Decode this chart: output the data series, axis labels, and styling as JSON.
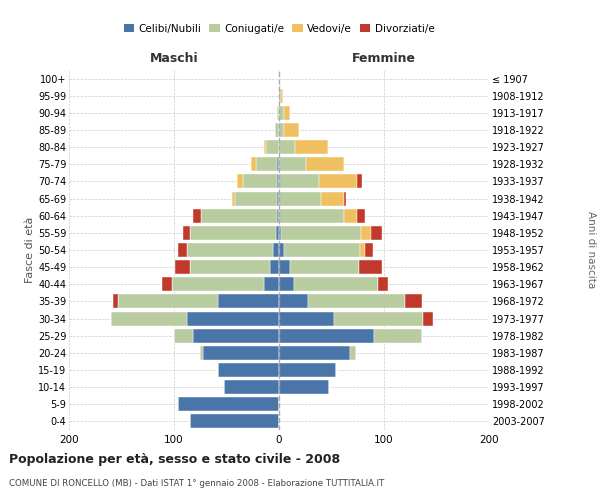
{
  "age_groups": [
    "0-4",
    "5-9",
    "10-14",
    "15-19",
    "20-24",
    "25-29",
    "30-34",
    "35-39",
    "40-44",
    "45-49",
    "50-54",
    "55-59",
    "60-64",
    "65-69",
    "70-74",
    "75-79",
    "80-84",
    "85-89",
    "90-94",
    "95-99",
    "100+"
  ],
  "birth_years": [
    "2003-2007",
    "1998-2002",
    "1993-1997",
    "1988-1992",
    "1983-1987",
    "1978-1982",
    "1973-1977",
    "1968-1972",
    "1963-1967",
    "1958-1962",
    "1953-1957",
    "1948-1952",
    "1943-1947",
    "1938-1942",
    "1933-1937",
    "1928-1932",
    "1923-1927",
    "1918-1922",
    "1913-1917",
    "1908-1912",
    "≤ 1907"
  ],
  "maschi_celibi": [
    85,
    96,
    52,
    58,
    72,
    82,
    88,
    58,
    14,
    9,
    6,
    3,
    2,
    2,
    2,
    2,
    0,
    0,
    0,
    0,
    0
  ],
  "maschi_coniugati": [
    0,
    0,
    0,
    0,
    3,
    18,
    72,
    95,
    88,
    76,
    82,
    82,
    72,
    40,
    32,
    20,
    12,
    4,
    2,
    0,
    0
  ],
  "maschi_vedovi": [
    0,
    0,
    0,
    0,
    0,
    0,
    0,
    0,
    0,
    0,
    0,
    0,
    0,
    3,
    6,
    5,
    2,
    0,
    0,
    0,
    0
  ],
  "maschi_divorziati": [
    0,
    0,
    0,
    0,
    0,
    0,
    0,
    5,
    9,
    14,
    8,
    6,
    8,
    0,
    0,
    0,
    0,
    0,
    0,
    0,
    0
  ],
  "femmine_nubili": [
    0,
    0,
    48,
    54,
    68,
    90,
    52,
    28,
    14,
    10,
    5,
    2,
    0,
    0,
    0,
    0,
    0,
    0,
    0,
    0,
    0
  ],
  "femmine_coniugate": [
    0,
    0,
    0,
    0,
    5,
    46,
    85,
    92,
    80,
    66,
    72,
    76,
    62,
    40,
    38,
    26,
    15,
    5,
    5,
    2,
    0
  ],
  "femmine_vedove": [
    0,
    0,
    0,
    0,
    0,
    0,
    0,
    0,
    0,
    0,
    5,
    10,
    12,
    22,
    36,
    36,
    32,
    14,
    5,
    2,
    0
  ],
  "femmine_divorziate": [
    0,
    0,
    0,
    0,
    0,
    0,
    10,
    16,
    10,
    22,
    8,
    10,
    8,
    2,
    5,
    0,
    0,
    0,
    0,
    0,
    0
  ],
  "colors": {
    "celibi_nubili": "#4a75a8",
    "coniugati": "#b8cca0",
    "vedovi": "#f0c060",
    "divorziati": "#c0392b"
  },
  "xlim": 200,
  "title": "Popolazione per età, sesso e stato civile - 2008",
  "subtitle": "COMUNE DI RONCELLO (MB) - Dati ISTAT 1° gennaio 2008 - Elaborazione TUTTITALIA.IT",
  "ylabel_left": "Fasce di età",
  "ylabel_right": "Anni di nascita",
  "xlabel_left": "Maschi",
  "xlabel_right": "Femmine"
}
